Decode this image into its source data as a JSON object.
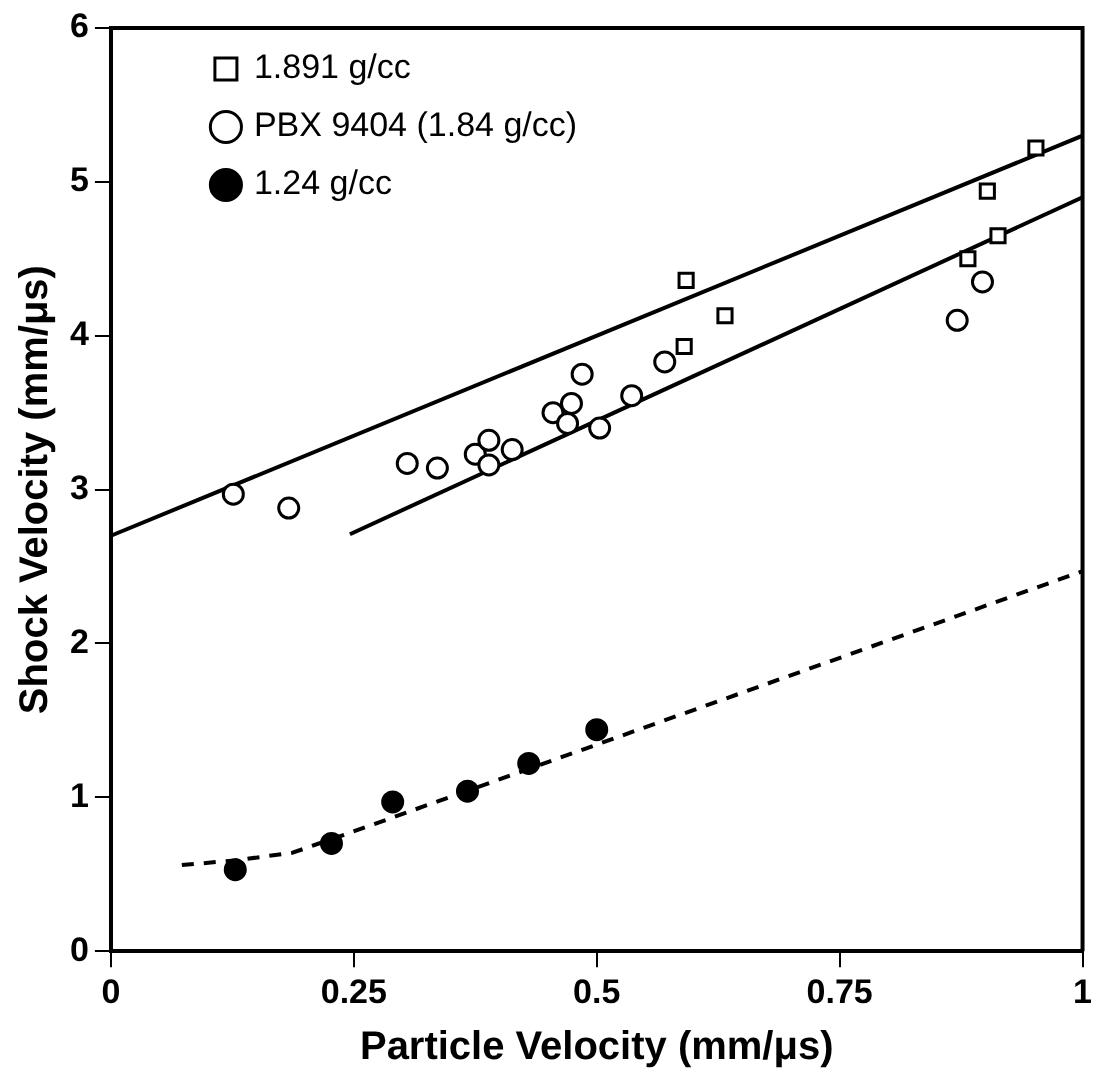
{
  "chart_data": {
    "type": "scatter",
    "xlabel": "Particle Velocity (mm/μs)",
    "ylabel": "Shock Velocity (mm/μs)",
    "xlim": [
      0,
      1
    ],
    "xticks": [
      0,
      0.25,
      0.5,
      0.75,
      1
    ],
    "ylim": [
      0,
      6
    ],
    "yticks": [
      0,
      1,
      2,
      3,
      4,
      5,
      6
    ],
    "grid": false,
    "legend": "top left",
    "series": [
      {
        "name": "1.891 g/cc",
        "color": "#000000",
        "marker": "square",
        "x": [
          0.952,
          0.902,
          0.913,
          0.882,
          0.592,
          0.632,
          0.59
        ],
        "values": [
          5.22,
          4.94,
          4.65,
          4.5,
          4.36,
          4.13,
          3.93
        ]
      },
      {
        "name": "PBX 9404 (1.84 g/cc)",
        "color": "#000000",
        "marker": "circle",
        "x": [
          0.126,
          0.183,
          0.305,
          0.336,
          0.375,
          0.389,
          0.389,
          0.413,
          0.455,
          0.474,
          0.485,
          0.47,
          0.503,
          0.536,
          0.57,
          0.871,
          0.897
        ],
        "values": [
          2.97,
          2.88,
          3.17,
          3.14,
          3.23,
          3.32,
          3.16,
          3.26,
          3.5,
          3.56,
          3.75,
          3.43,
          3.4,
          3.61,
          3.83,
          4.1,
          4.35
        ]
      },
      {
        "name": "1.24 g/cc",
        "color": "#000000",
        "marker": "filled circle",
        "x": [
          0.128,
          0.227,
          0.29,
          0.367,
          0.43,
          0.5
        ],
        "values": [
          0.53,
          0.7,
          0.97,
          1.04,
          1.22,
          1.44
        ]
      },
      {
        "type": "line",
        "color": "#000000",
        "line_style": "solid",
        "x": [
          0,
          1
        ],
        "values": [
          2.7,
          5.3
        ]
      },
      {
        "type": "line",
        "color": "#000000",
        "line_style": "solid",
        "x": [
          0.246,
          1
        ],
        "values": [
          2.71,
          4.9
        ]
      },
      {
        "type": "line",
        "color": "#000000",
        "line_style": "dashed",
        "x": [
          0.073,
          0.128,
          0.187,
          0.246,
          1
        ],
        "values": [
          0.56,
          0.59,
          0.64,
          0.77,
          2.47
        ]
      }
    ]
  }
}
